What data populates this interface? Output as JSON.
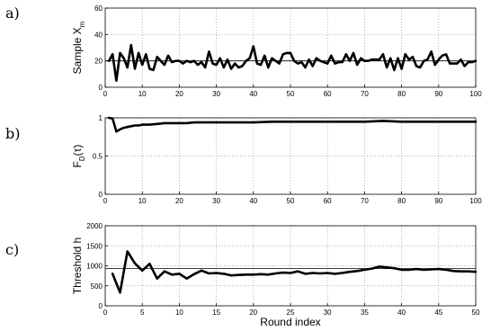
{
  "chart_data": [
    {
      "type": "line",
      "panel_label": "a)",
      "ylabel": "Sample X",
      "ylabel_sub": "m",
      "xlabel": "",
      "xlim": [
        0,
        100
      ],
      "ylim": [
        0,
        60
      ],
      "xticks": [
        0,
        10,
        20,
        30,
        40,
        50,
        60,
        70,
        80,
        90,
        100
      ],
      "yticks": [
        0,
        20,
        40,
        60
      ],
      "grid": true,
      "reference_line": 20,
      "series": [
        {
          "x": [
            1,
            2,
            3,
            4,
            5,
            6,
            7,
            8,
            9,
            10,
            11,
            12,
            13,
            14,
            15,
            16,
            17,
            18,
            19,
            20,
            21,
            22,
            23,
            24,
            25,
            26,
            27,
            28,
            29,
            30,
            31,
            32,
            33,
            34,
            35,
            36,
            37,
            38,
            39,
            40,
            41,
            42,
            43,
            44,
            45,
            46,
            47,
            48,
            49,
            50,
            51,
            52,
            53,
            54,
            55,
            56,
            57,
            58,
            59,
            60,
            61,
            62,
            63,
            64,
            65,
            66,
            67,
            68,
            69,
            70,
            71,
            72,
            73,
            74,
            75,
            76,
            77,
            78,
            79,
            80,
            81,
            82,
            83,
            84,
            85,
            86,
            87,
            88,
            89,
            90,
            91,
            92,
            93,
            94,
            95,
            96,
            97,
            98,
            99,
            100
          ],
          "y": [
            20,
            25,
            5,
            26,
            22,
            15,
            32,
            14,
            26,
            17,
            25,
            14,
            13,
            23,
            20,
            17,
            24,
            19,
            20,
            20,
            18,
            20,
            19,
            20,
            17,
            19,
            15,
            27,
            18,
            17,
            22,
            15,
            21,
            14,
            18,
            15,
            16,
            20,
            22,
            31,
            18,
            17,
            24,
            15,
            22,
            20,
            18,
            25,
            26,
            26,
            20,
            18,
            19,
            15,
            21,
            16,
            22,
            20,
            19,
            18,
            24,
            18,
            19,
            19,
            25,
            20,
            26,
            17,
            22,
            20,
            20,
            21,
            21,
            21,
            25,
            15,
            22,
            13,
            22,
            14,
            25,
            21,
            23,
            16,
            15,
            20,
            21,
            27,
            17,
            21,
            24,
            25,
            18,
            18,
            18,
            21,
            16,
            19,
            19,
            20
          ]
        }
      ]
    },
    {
      "type": "line",
      "panel_label": "b)",
      "ylabel": "F",
      "ylabel_sub": "D",
      "ylabel_suffix": "(τ)",
      "xlabel": "",
      "xlim": [
        0,
        100
      ],
      "ylim": [
        0,
        1
      ],
      "xticks": [
        0,
        10,
        20,
        30,
        40,
        50,
        60,
        70,
        80,
        90,
        100
      ],
      "yticks": [
        0,
        0.5,
        1
      ],
      "grid": true,
      "series": [
        {
          "x": [
            1,
            2,
            3,
            4,
            5,
            6,
            7,
            8,
            9,
            10,
            12,
            14,
            16,
            18,
            20,
            22,
            24,
            26,
            28,
            30,
            32,
            34,
            36,
            38,
            40,
            45,
            50,
            55,
            60,
            65,
            70,
            75,
            80,
            85,
            90,
            95,
            100
          ],
          "y": [
            1.0,
            0.99,
            0.82,
            0.85,
            0.87,
            0.88,
            0.89,
            0.9,
            0.9,
            0.91,
            0.91,
            0.92,
            0.93,
            0.93,
            0.93,
            0.93,
            0.94,
            0.94,
            0.94,
            0.94,
            0.94,
            0.94,
            0.94,
            0.94,
            0.94,
            0.95,
            0.95,
            0.95,
            0.95,
            0.95,
            0.95,
            0.96,
            0.95,
            0.95,
            0.95,
            0.95,
            0.95
          ]
        }
      ]
    },
    {
      "type": "line",
      "panel_label": "c)",
      "ylabel": "Threshold h",
      "xlabel": "Round index",
      "xlim": [
        0,
        50
      ],
      "ylim": [
        0,
        2000
      ],
      "xticks": [
        0,
        5,
        10,
        15,
        20,
        25,
        30,
        35,
        40,
        45,
        50
      ],
      "yticks": [
        0,
        500,
        1000,
        1500,
        2000
      ],
      "grid": true,
      "reference_line": 930,
      "series": [
        {
          "x": [
            1,
            2,
            3,
            4,
            5,
            6,
            7,
            8,
            9,
            10,
            11,
            12,
            13,
            14,
            15,
            16,
            17,
            18,
            19,
            20,
            21,
            22,
            23,
            24,
            25,
            26,
            27,
            28,
            29,
            30,
            31,
            32,
            33,
            34,
            35,
            36,
            37,
            38,
            39,
            40,
            41,
            42,
            43,
            44,
            45,
            46,
            47,
            48,
            49,
            50
          ],
          "y": [
            800,
            330,
            1360,
            1060,
            880,
            1050,
            680,
            860,
            780,
            800,
            680,
            790,
            880,
            810,
            820,
            800,
            760,
            770,
            780,
            780,
            790,
            780,
            810,
            830,
            820,
            860,
            800,
            820,
            810,
            820,
            800,
            820,
            850,
            870,
            900,
            930,
            980,
            960,
            940,
            900,
            900,
            920,
            900,
            910,
            920,
            900,
            870,
            860,
            860,
            850
          ]
        }
      ]
    }
  ]
}
